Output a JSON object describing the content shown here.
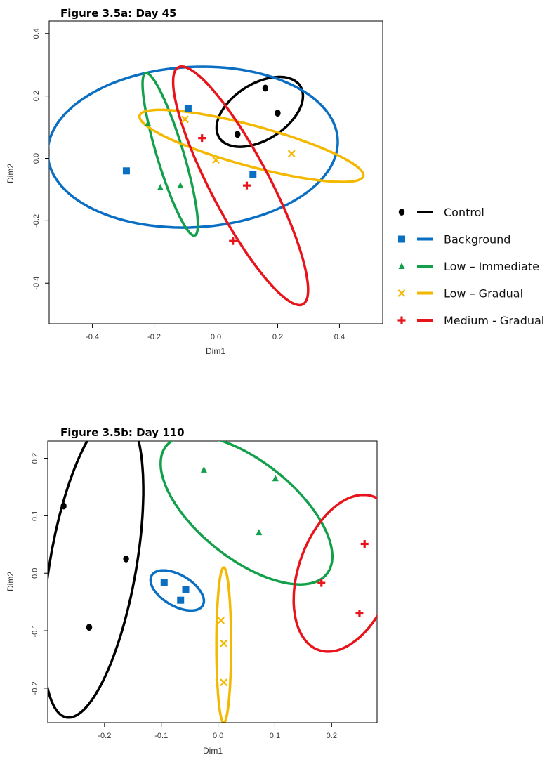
{
  "colors": {
    "control": "#000000",
    "background": "#0a6fc2",
    "low_immediate": "#12a14a",
    "low_gradual": "#f5b800",
    "medium_gradual": "#e8141b"
  },
  "legend": [
    {
      "key": "control",
      "label": "Control",
      "marker": "circle"
    },
    {
      "key": "background",
      "label": "Background",
      "marker": "square"
    },
    {
      "key": "low_immediate",
      "label": "Low – Immediate",
      "marker": "triangle"
    },
    {
      "key": "low_gradual",
      "label": "Low – Gradual",
      "marker": "asterisk"
    },
    {
      "key": "medium_gradual",
      "label": "Medium - Gradual",
      "marker": "cross"
    }
  ],
  "chart_data": [
    {
      "type": "scatter",
      "title": "Figure  3.5a: Day 45",
      "xlabel": "Dim1",
      "ylabel": "Dim2",
      "xlim": [
        -0.54,
        0.54
      ],
      "ylim": [
        -0.53,
        0.44
      ],
      "xticks": [
        -0.4,
        -0.2,
        0.0,
        0.2,
        0.4
      ],
      "xtick_labels": [
        "-0.4",
        "-0.2",
        "0.0",
        "0.2",
        "0.4"
      ],
      "yticks": [
        -0.4,
        -0.2,
        0.0,
        0.2,
        0.4
      ],
      "ytick_labels": [
        "-0.4",
        "-0.2",
        "0.0",
        "0.2",
        "0.4"
      ],
      "legend_position": "right",
      "series": [
        {
          "key": "control",
          "name": "Control",
          "points": [
            [
              0.16,
              0.225
            ],
            [
              0.2,
              0.145
            ],
            [
              0.07,
              0.077
            ]
          ],
          "ellipse": {
            "center": [
              0.142,
              0.149
            ],
            "a": 0.155,
            "b": 0.09,
            "angle": 32
          }
        },
        {
          "key": "background",
          "name": "Background",
          "points": [
            [
              -0.29,
              -0.04
            ],
            [
              -0.09,
              0.16
            ],
            [
              0.12,
              -0.052
            ]
          ],
          "ellipse": {
            "center": [
              -0.075,
              0.036
            ],
            "a": 0.47,
            "b": 0.257,
            "angle": 3
          }
        },
        {
          "key": "low_immediate",
          "name": "Low – Immediate",
          "points": [
            [
              -0.22,
              0.112
            ],
            [
              -0.18,
              -0.093
            ],
            [
              -0.115,
              -0.087
            ]
          ],
          "ellipse": {
            "center": [
              -0.148,
              0.013
            ],
            "a": 0.272,
            "b": 0.043,
            "angle": -73
          }
        },
        {
          "key": "low_gradual",
          "name": "Low – Gradual",
          "points": [
            [
              -0.1,
              0.125
            ],
            [
              0.0,
              -0.005
            ],
            [
              0.245,
              0.015
            ]
          ],
          "ellipse": {
            "center": [
              0.115,
              0.04
            ],
            "a": 0.375,
            "b": 0.065,
            "angle": -15
          }
        },
        {
          "key": "medium_gradual",
          "name": "Medium - Gradual",
          "points": [
            [
              -0.045,
              0.065
            ],
            [
              0.1,
              -0.087
            ],
            [
              0.055,
              -0.265
            ]
          ],
          "ellipse": {
            "center": [
              0.08,
              -0.088
            ],
            "a": 0.43,
            "b": 0.095,
            "angle": -62
          }
        }
      ]
    },
    {
      "type": "scatter",
      "title": "Figure  3.5b: Day 110",
      "xlabel": "Dim1",
      "ylabel": "Dim2",
      "xlim": [
        -0.3,
        0.28
      ],
      "ylim": [
        -0.26,
        0.23
      ],
      "xticks": [
        -0.2,
        -0.1,
        0.0,
        0.1,
        0.2
      ],
      "xtick_labels": [
        "-0.2",
        "-0.1",
        "0.0",
        "0.1",
        "0.2"
      ],
      "yticks": [
        -0.2,
        -0.1,
        0.0,
        0.1,
        0.2
      ],
      "ytick_labels": [
        "-0.2",
        "-0.1",
        "0.0",
        "0.1",
        "0.2"
      ],
      "series": [
        {
          "key": "control",
          "name": "Control",
          "points": [
            [
              -0.272,
              0.117
            ],
            [
              -0.162,
              0.025
            ],
            [
              -0.227,
              -0.094
            ]
          ],
          "ellipse": {
            "center": [
              -0.22,
              0.015
            ],
            "a": 0.27,
            "b": 0.076,
            "angle": 80
          }
        },
        {
          "key": "background",
          "name": "Background",
          "points": [
            [
              -0.095,
              -0.016
            ],
            [
              -0.057,
              -0.028
            ],
            [
              -0.066,
              -0.047
            ]
          ],
          "ellipse": {
            "center": [
              -0.072,
              -0.03
            ],
            "a": 0.052,
            "b": 0.027,
            "angle": -30
          }
        },
        {
          "key": "low_immediate",
          "name": "Low – Immediate",
          "points": [
            [
              -0.025,
              0.18
            ],
            [
              0.101,
              0.165
            ],
            [
              0.072,
              0.071
            ]
          ],
          "ellipse": {
            "center": [
              0.05,
              0.11
            ],
            "a": 0.18,
            "b": 0.085,
            "angle": -38
          }
        },
        {
          "key": "low_gradual",
          "name": "Low – Gradual",
          "points": [
            [
              0.005,
              -0.082
            ],
            [
              0.01,
              -0.122
            ],
            [
              0.01,
              -0.19
            ]
          ],
          "ellipse": {
            "center": [
              0.01,
              -0.125
            ],
            "a": 0.135,
            "b": 0.013,
            "angle": 90
          }
        },
        {
          "key": "medium_gradual",
          "name": "Medium - Gradual",
          "points": [
            [
              0.182,
              -0.017
            ],
            [
              0.258,
              0.051
            ],
            [
              0.249,
              -0.07
            ]
          ],
          "ellipse": {
            "center": [
              0.225,
              0.0
            ],
            "a": 0.142,
            "b": 0.083,
            "angle": 70
          }
        }
      ]
    }
  ]
}
